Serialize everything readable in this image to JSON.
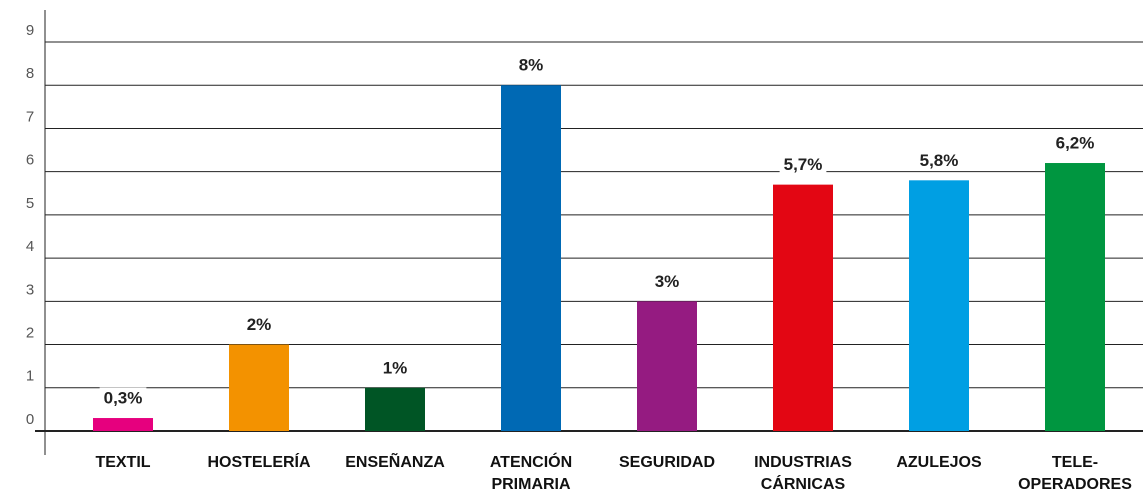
{
  "chart_data": {
    "type": "bar",
    "categories": [
      [
        "TEXTIL"
      ],
      [
        "HOSTELERÍA"
      ],
      [
        "ENSEÑANZA"
      ],
      [
        "ATENCIÓN",
        "PRIMARIA"
      ],
      [
        "SEGURIDAD"
      ],
      [
        "INDUSTRIAS",
        "CÁRNICAS"
      ],
      [
        "AZULEJOS"
      ],
      [
        "TELE-",
        "OPERADORES"
      ]
    ],
    "values": [
      0.3,
      2,
      1,
      8,
      3,
      5.7,
      5.8,
      6.2
    ],
    "value_labels": [
      "0,3%",
      "2%",
      "1%",
      "8%",
      "3%",
      "5,7%",
      "5,8%",
      "6,2%"
    ],
    "colors": [
      "#e6007e",
      "#f39200",
      "#005525",
      "#0069b4",
      "#951b81",
      "#e30613",
      "#009fe3",
      "#009640"
    ],
    "ylim": [
      0,
      9
    ],
    "yticks": [
      0,
      1,
      2,
      3,
      4,
      5,
      6,
      7,
      8,
      9
    ],
    "grid": true
  }
}
